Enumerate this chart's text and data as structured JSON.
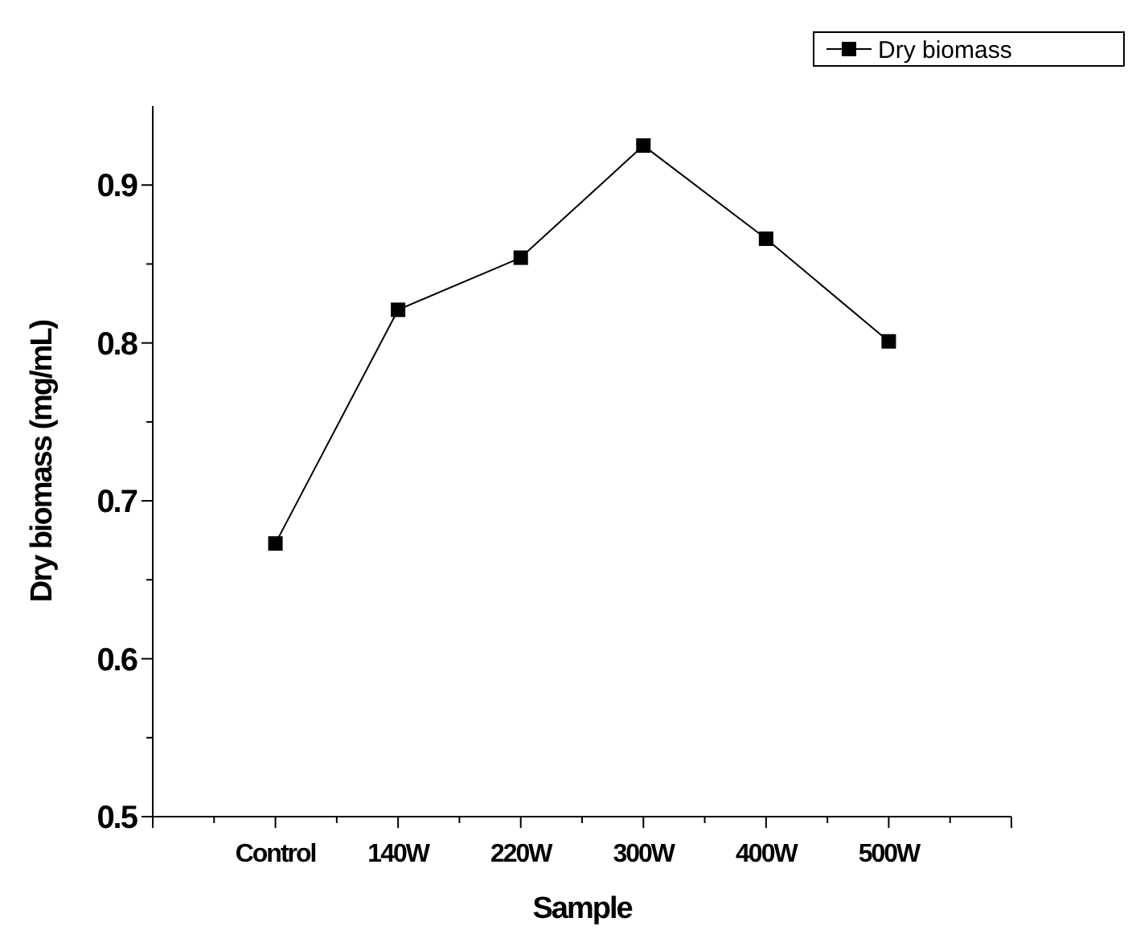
{
  "chart_data": {
    "type": "line",
    "xlabel": "Sample",
    "ylabel": "Dry biomass (mg/mL)",
    "categories": [
      null,
      "Control",
      "140W",
      "220W",
      "300W",
      "400W",
      "500W",
      null
    ],
    "series": [
      {
        "name": "Dry biomass",
        "color": "#000000",
        "values": [
          null,
          0.673,
          0.821,
          0.854,
          0.925,
          0.866,
          0.801,
          null
        ]
      }
    ],
    "ylim": [
      0.5,
      0.95
    ],
    "yticks": [
      0.5,
      {
        "value": 0.55,
        "label": null
      },
      0.6,
      {
        "value": 0.65,
        "label": null
      },
      0.7,
      {
        "value": 0.75,
        "label": null
      },
      0.8,
      {
        "value": 0.85,
        "label": null
      },
      0.9
    ],
    "marker": "square",
    "line_style": "solid",
    "legend": "top right",
    "grid": false
  }
}
